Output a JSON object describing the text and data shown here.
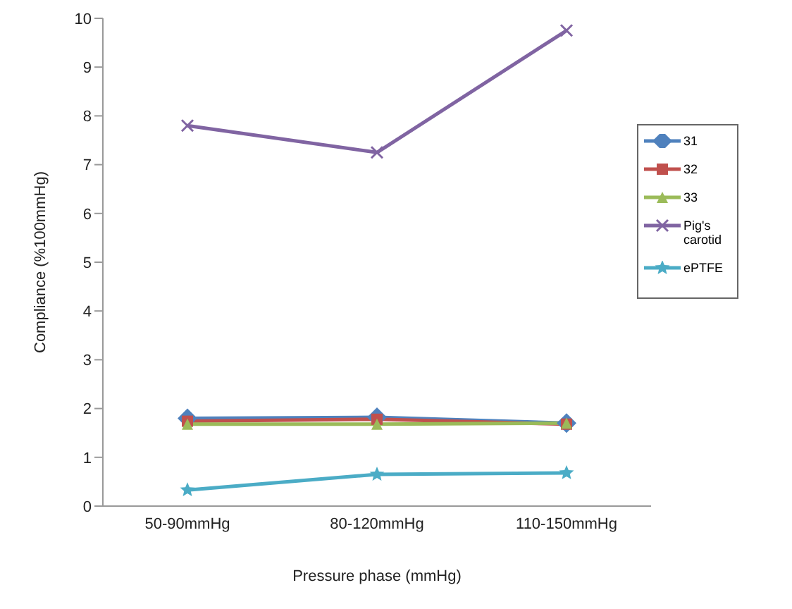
{
  "chart_data": {
    "type": "line",
    "xlabel": "Pressure phase (mmHg)",
    "ylabel": "Compliance (%100mmHg)",
    "categories": [
      "50-90mmHg",
      "80-120mmHg",
      "110-150mmHg"
    ],
    "ylim": [
      0,
      10
    ],
    "yticks": [
      0,
      1,
      2,
      3,
      4,
      5,
      6,
      7,
      8,
      9,
      10
    ],
    "grid": false,
    "legend": "right",
    "series": [
      {
        "name": "31",
        "color": "#4f81bd",
        "marker": "diamond",
        "values": [
          1.8,
          1.82,
          1.7
        ]
      },
      {
        "name": "32",
        "color": "#c0504d",
        "marker": "square",
        "values": [
          1.74,
          1.78,
          1.68
        ]
      },
      {
        "name": "33",
        "color": "#9bbb59",
        "marker": "triangle",
        "values": [
          1.68,
          1.68,
          1.7
        ]
      },
      {
        "name": "Pig's carotid",
        "color": "#8064a2",
        "marker": "cross",
        "values": [
          7.8,
          7.25,
          9.75
        ]
      },
      {
        "name": "ePTFE",
        "color": "#4bacc6",
        "marker": "star",
        "values": [
          0.33,
          0.65,
          0.68
        ]
      }
    ]
  }
}
